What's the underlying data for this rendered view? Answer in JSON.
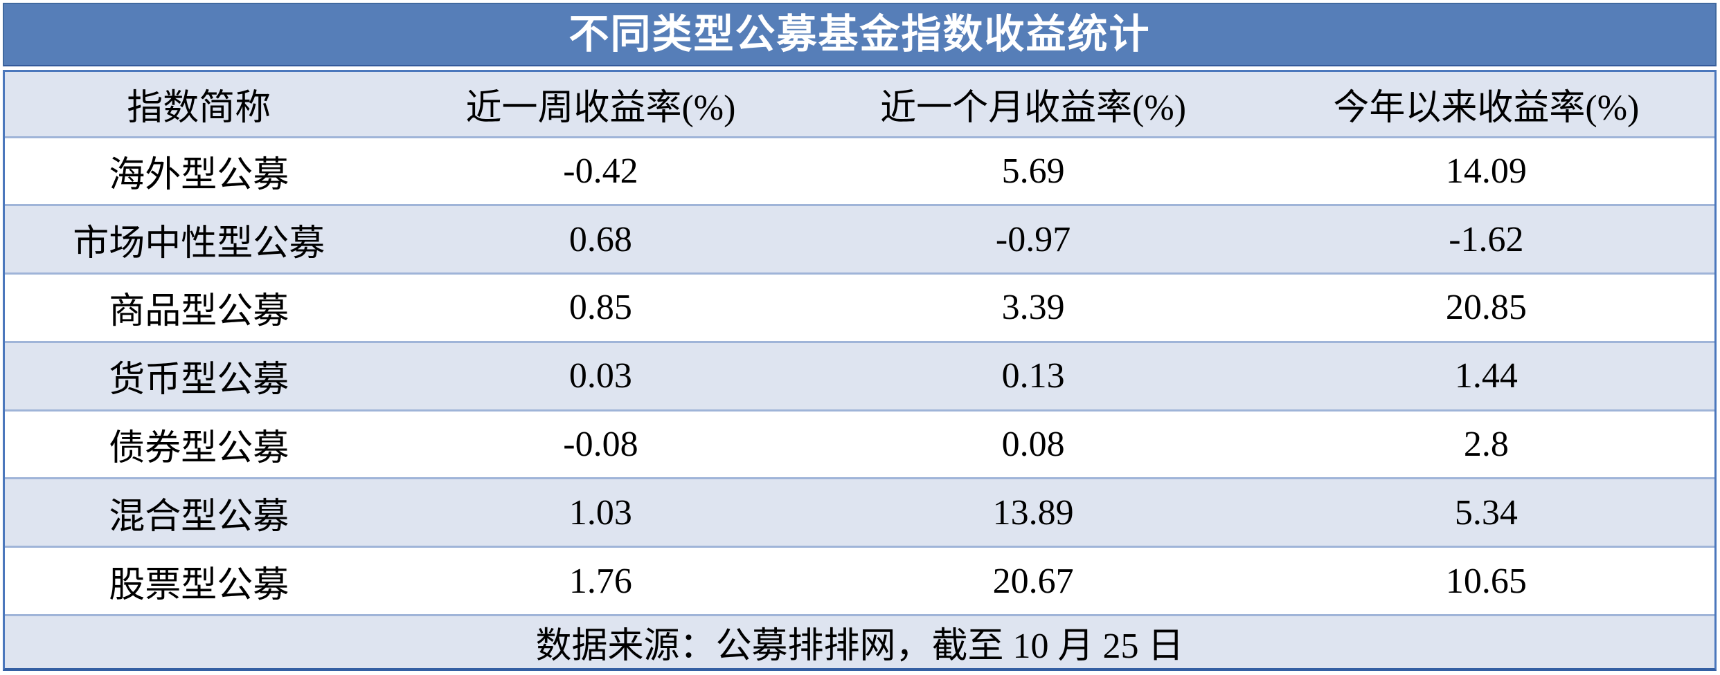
{
  "title": "不同类型公募基金指数收益统计",
  "chart_data": {
    "type": "table",
    "title": "不同类型公募基金指数收益统计",
    "columns": [
      "指数简称",
      "近一周收益率(%)",
      "近一个月收益率(%)",
      "今年以来收益率(%)"
    ],
    "rows": [
      [
        "海外型公募",
        -0.42,
        5.69,
        14.09
      ],
      [
        "市场中性型公募",
        0.68,
        -0.97,
        -1.62
      ],
      [
        "商品型公募",
        0.85,
        3.39,
        20.85
      ],
      [
        "货币型公募",
        0.03,
        0.13,
        1.44
      ],
      [
        "债券型公募",
        -0.08,
        0.08,
        2.8
      ],
      [
        "混合型公募",
        1.03,
        13.89,
        5.34
      ],
      [
        "股票型公募",
        1.76,
        20.67,
        10.65
      ]
    ],
    "footnote": "数据来源：公募排排网，截至 10 月 25 日"
  },
  "colors": {
    "title_background": "#567EB8",
    "title_text": "#FFFFFF",
    "stripe_background": "#DEE4F0",
    "row_background": "#FFFFFF",
    "separator_border": "#9FB4D8",
    "outer_border": "#4B77BC",
    "bottom_border": "#345FA3",
    "body_text": "#000000"
  }
}
